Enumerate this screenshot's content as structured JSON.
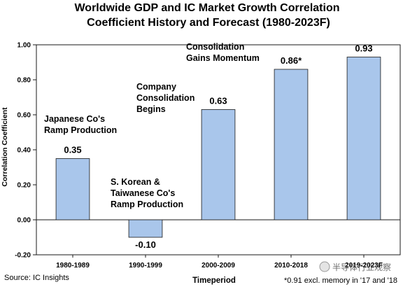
{
  "chart_data": {
    "type": "bar",
    "title_lines": [
      "Worldwide GDP and IC Market Growth Correlation",
      "Coefficient History and Forecast (1980-2023F)"
    ],
    "ylabel": "Correlation Coefficient",
    "xlabel": "Timeperiod",
    "ylim": [
      -0.2,
      1.0
    ],
    "yticks": [
      1.0,
      0.8,
      0.6,
      0.4,
      0.2,
      0.0,
      -0.2
    ],
    "ytick_labels": [
      "1.00",
      "0.80",
      "0.60",
      "0.40",
      "0.20",
      "0.00",
      "-0.20"
    ],
    "categories": [
      "1980-1989",
      "1990-1999",
      "2000-2009",
      "2010-2018",
      "2019-2023F"
    ],
    "values": [
      0.35,
      -0.1,
      0.63,
      0.86,
      0.93
    ],
    "value_labels": [
      "0.35",
      "-0.10",
      "0.63",
      "0.86*",
      "0.93"
    ],
    "bar_color": "#a9c6eb",
    "bar_edge_color": "#1a1a1a",
    "annotations": [
      {
        "lines": [
          "Japanese Co's",
          "Ramp Production"
        ]
      },
      {
        "lines": [
          "S. Korean &",
          "Taiwanese Co's",
          "Ramp Production"
        ]
      },
      {
        "lines": [
          "Company",
          "Consolidation",
          "Begins"
        ]
      },
      {
        "lines": [
          "Consolidation",
          "Gains Momentum"
        ]
      }
    ],
    "grid": false,
    "legend": "none"
  },
  "footer": {
    "source": "Source: IC Insights",
    "note": "*0.91 excl. memory in '17 and '18"
  },
  "watermark": {
    "text": "半导体行业观察",
    "icon": "wechat-channel-icon"
  }
}
